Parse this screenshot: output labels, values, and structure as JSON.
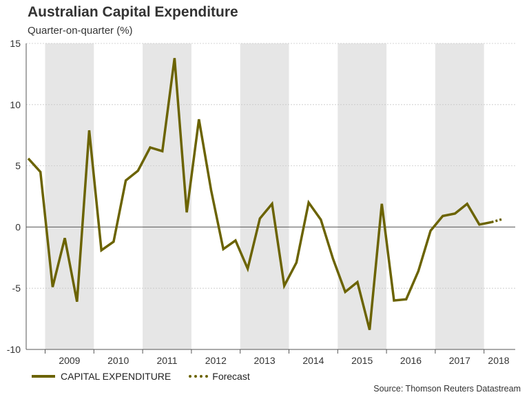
{
  "chart_data": {
    "type": "line",
    "title": "Australian Capital Expenditure",
    "subtitle": "Quarter-on-quarter (%)",
    "xlabel": "",
    "ylabel": "",
    "ylim": [
      -10,
      15
    ],
    "yticks": [
      15,
      10,
      5,
      0,
      -5,
      -10
    ],
    "year_labels": [
      "2009",
      "2010",
      "2011",
      "2012",
      "2013",
      "2014",
      "2015",
      "2016",
      "2017",
      "2018"
    ],
    "grid": true,
    "series": [
      {
        "name": "CAPITAL EXPENDITURE",
        "color": "#6b6300",
        "style": "solid",
        "values": [
          5.6,
          4.5,
          -4.9,
          -0.9,
          -6.1,
          7.9,
          -1.9,
          -1.2,
          3.8,
          4.6,
          6.5,
          6.2,
          13.8,
          1.2,
          8.8,
          3.0,
          -1.8,
          -1.1,
          -3.4,
          0.7,
          1.9,
          -4.8,
          -2.9,
          2.0,
          0.6,
          -2.6,
          -5.3,
          -4.5,
          -8.4,
          1.9,
          -6.0,
          -5.9,
          -3.6,
          -0.3,
          0.9,
          1.1,
          1.9,
          0.2,
          0.4
        ]
      },
      {
        "name": "Forecast",
        "color": "#6b6300",
        "style": "dotted",
        "values": [
          0.4,
          0.65
        ]
      }
    ],
    "legend": [
      "CAPITAL EXPENDITURE",
      "Forecast"
    ],
    "source": "Source: Thomson Reuters Datastream"
  }
}
